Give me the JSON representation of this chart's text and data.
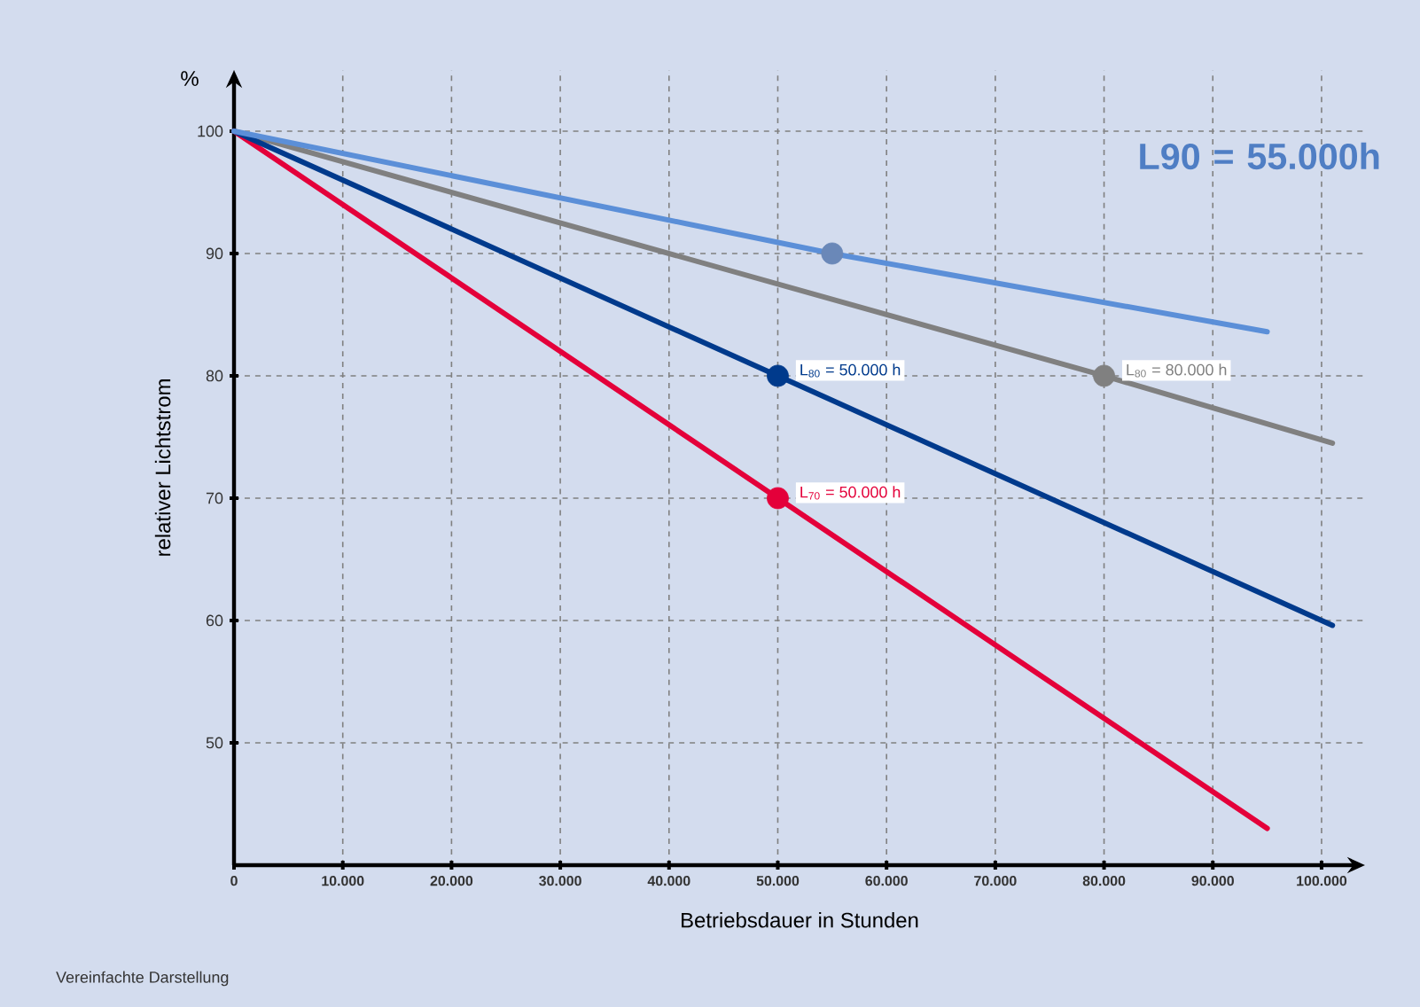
{
  "chart_data": {
    "type": "line",
    "xlabel": "Betriebsdauer in Stunden",
    "ylabel": "relativer Lichtstrom",
    "xlim": [
      0,
      104000
    ],
    "ylim": [
      40,
      105
    ],
    "xticks": [
      0,
      {
        "value": 10000,
        "label": "10.000"
      },
      {
        "value": 20000,
        "label": "20.000"
      },
      {
        "value": 30000,
        "label": "30.000"
      },
      {
        "value": 40000,
        "label": "40.000"
      },
      {
        "value": 50000,
        "label": "50.000"
      },
      {
        "value": 60000,
        "label": "60.000"
      },
      {
        "value": 70000,
        "label": "70.000"
      },
      {
        "value": 80000,
        "label": "80.000"
      },
      {
        "value": 90000,
        "label": "90.000"
      },
      {
        "value": 100000,
        "label": "100.000"
      }
    ],
    "yticks": [
      50,
      60,
      70,
      80,
      90,
      100
    ],
    "grid": true,
    "series": [
      {
        "color": "#808080",
        "x": [
          0,
          80000,
          101000
        ],
        "values": [
          100,
          80,
          74.5
        ]
      },
      {
        "color": "#e4003a",
        "x": [
          0,
          50000,
          95000
        ],
        "values": [
          100,
          70,
          43
        ]
      },
      {
        "color": "#003a8c",
        "x": [
          0,
          50000,
          101000
        ],
        "values": [
          100,
          80,
          59.6
        ]
      },
      {
        "color": "#5b8fd8",
        "x": [
          0,
          55000,
          95000
        ],
        "values": [
          100,
          90,
          83.6
        ]
      },
      {
        "type": "scatter",
        "color": "#003a8c",
        "x": [
          50000
        ],
        "values": [
          80
        ]
      },
      {
        "type": "scatter",
        "color": "#e4003a",
        "x": [
          50000
        ],
        "values": [
          70
        ]
      },
      {
        "type": "scatter",
        "color": "#808080",
        "x": [
          80000
        ],
        "values": [
          80
        ]
      },
      {
        "type": "scatter",
        "color": "#6a88b8",
        "x": [
          55000
        ],
        "values": [
          90
        ]
      }
    ],
    "annotations": [
      "%",
      "L90 = 55.000h",
      "Vereinfachte Darstellung",
      "L$_{80}$ = 50.000 h",
      "L$_{70}$ = 50.000 h",
      "L$_{80}$ = 80.000 h"
    ]
  }
}
